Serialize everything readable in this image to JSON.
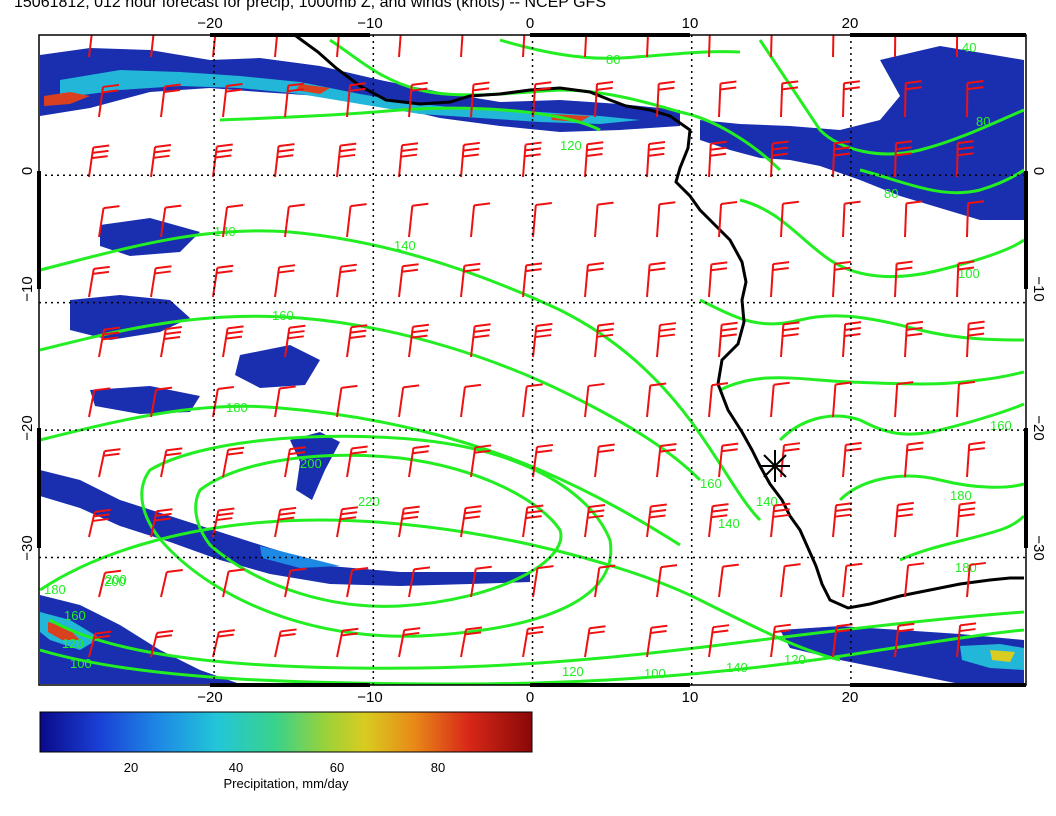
{
  "title": "15061812, 012 hour forecast for precip, 1000mb Z, and winds (knots) -- NCEP GFS",
  "map": {
    "lon_range": [
      -31,
      31
    ],
    "lat_range": [
      -40,
      11
    ],
    "lon_ticks": [
      {
        "value": -20,
        "label": "−20"
      },
      {
        "value": -10,
        "label": "−10"
      },
      {
        "value": 0,
        "label": "0"
      },
      {
        "value": 10,
        "label": "10"
      },
      {
        "value": 20,
        "label": "20"
      }
    ],
    "lat_ticks": [
      {
        "value": 0,
        "label": "0"
      },
      {
        "value": -10,
        "label": "−10"
      },
      {
        "value": -20,
        "label": "−20"
      },
      {
        "value": -30,
        "label": "−30"
      }
    ],
    "grid_lons": [
      -20,
      -10,
      0,
      10,
      20
    ],
    "grid_lats": [
      0,
      -10,
      -20,
      -30
    ],
    "marker_lonlat": [
      15,
      -24
    ],
    "colors": {
      "coastline": "#000000",
      "contours": "#22ee22",
      "barbs": "#ee1111",
      "grid": "#000000"
    }
  },
  "contours": {
    "unit": "1000mb geopotential height (m)",
    "labels": [
      "80",
      "120",
      "140",
      "140",
      "160",
      "180",
      "200",
      "200",
      "220",
      "160",
      "140",
      "140",
      "100",
      "80",
      "160",
      "180",
      "180",
      "160",
      "120",
      "100",
      "120",
      "140",
      "100",
      "120",
      "80",
      "40",
      "200",
      "180"
    ]
  },
  "colorbar": {
    "label": "Precipitation, mm/day",
    "min": 0,
    "max": 98,
    "ticks": [
      "20",
      "40",
      "60",
      "80"
    ],
    "tick_values": [
      20,
      40,
      60,
      80
    ],
    "colors": [
      "#0a0a8a",
      "#1a3fd6",
      "#1e88e5",
      "#22c6d8",
      "#3ad28a",
      "#9ad23a",
      "#d8cc20",
      "#e88a18",
      "#d82818",
      "#8a0808"
    ]
  }
}
